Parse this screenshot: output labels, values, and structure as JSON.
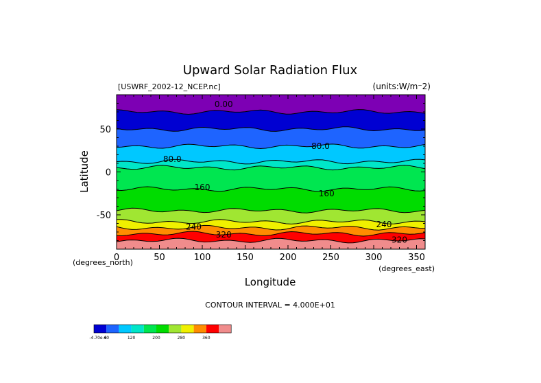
{
  "chart_data": {
    "type": "heatmap",
    "title": "Upward Solar Radiation Flux",
    "dataset_label": "[USWRF_2002-12_NCEP.nc]",
    "units_label": "(units:W/m⁻2)",
    "xlabel": "Longitude",
    "ylabel": "Latitude",
    "x_unit_label": "(degrees_east)",
    "y_unit_label": "(degrees_north)",
    "xlim": [
      0,
      360
    ],
    "ylim": [
      -90,
      90
    ],
    "x_ticks": [
      0,
      50,
      100,
      150,
      200,
      250,
      300,
      350
    ],
    "y_ticks": [
      -50,
      0,
      50
    ],
    "contour_interval_text": "CONTOUR INTERVAL = 4.000E+01",
    "contour_labels": [
      {
        "text": "0.00",
        "x": 125,
        "y": 79
      },
      {
        "text": "80.0",
        "x": 238,
        "y": 30
      },
      {
        "text": "80.0",
        "x": 65,
        "y": 15
      },
      {
        "text": "160",
        "x": 100,
        "y": -18
      },
      {
        "text": "160",
        "x": 245,
        "y": -25
      },
      {
        "text": "240",
        "x": 90,
        "y": -64
      },
      {
        "text": "240",
        "x": 312,
        "y": -61
      },
      {
        "text": "320",
        "x": 125,
        "y": -73
      },
      {
        "text": "320",
        "x": 330,
        "y": -79
      }
    ],
    "bands": [
      {
        "lat": [
          70,
          90
        ],
        "color": "#7d00b4",
        "value_range": [
          0,
          40
        ]
      },
      {
        "lat": [
          50,
          70
        ],
        "color": "#0000d2",
        "value_range": [
          0,
          40
        ]
      },
      {
        "lat": [
          30,
          50
        ],
        "color": "#1e64ff",
        "value_range": [
          40,
          80
        ]
      },
      {
        "lat": [
          12,
          30
        ],
        "color": "#00c8ff",
        "value_range": [
          80,
          120
        ]
      },
      {
        "lat": [
          5,
          12
        ],
        "color": "#00e6c8",
        "value_range": [
          120,
          160
        ]
      },
      {
        "lat": [
          -20,
          5
        ],
        "color": "#00e650",
        "value_range": [
          160,
          200
        ]
      },
      {
        "lat": [
          -45,
          -20
        ],
        "color": "#00dc00",
        "value_range": [
          200,
          240
        ]
      },
      {
        "lat": [
          -58,
          -45
        ],
        "color": "#a0e632",
        "value_range": [
          240,
          280
        ]
      },
      {
        "lat": [
          -65,
          -58
        ],
        "color": "#f0f000",
        "value_range": [
          280,
          320
        ]
      },
      {
        "lat": [
          -72,
          -65
        ],
        "color": "#ff8c00",
        "value_range": [
          320,
          360
        ]
      },
      {
        "lat": [
          -80,
          -72
        ],
        "color": "#ff0000",
        "value_range": [
          360,
          400
        ]
      },
      {
        "lat": [
          -90,
          -80
        ],
        "color": "#f08c8c",
        "value_range": [
          400,
          440
        ]
      }
    ],
    "colorbar": {
      "colors": [
        "#0000d2",
        "#1e64ff",
        "#00c8ff",
        "#00e6c8",
        "#00e650",
        "#00dc00",
        "#a0e632",
        "#f0f000",
        "#ff8c00",
        "#ff0000",
        "#f08c8c"
      ],
      "labels": [
        {
          "text": "-4.70e-6",
          "edge": 0
        },
        {
          "text": "40",
          "edge": 1
        },
        {
          "text": "120",
          "edge": 3
        },
        {
          "text": "200",
          "edge": 5
        },
        {
          "text": "280",
          "edge": 7
        },
        {
          "text": "360",
          "edge": 9
        }
      ]
    }
  }
}
